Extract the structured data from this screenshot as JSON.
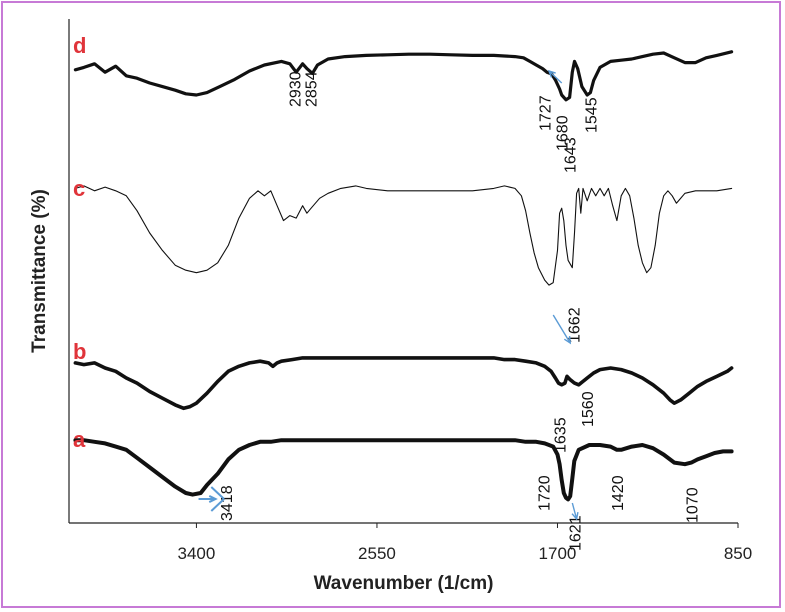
{
  "chart_data": {
    "type": "line",
    "xlabel": "Wavenumber (1/cm)",
    "ylabel": "Transmittance (%)",
    "xlim": [
      4000,
      850
    ],
    "x_ticks": [
      {
        "value": 3400,
        "label": "3400"
      },
      {
        "value": 2550,
        "label": "2550"
      },
      {
        "value": 1700,
        "label": "1700"
      },
      {
        "value": 850,
        "label": "850"
      }
    ],
    "y_ticks_shown": false,
    "grid": false,
    "colors": {
      "curve_label": "#e0343a",
      "arrow": "#5b9bd5",
      "line": "#111111",
      "frame": "#c77ad6"
    },
    "series": [
      {
        "name": "d",
        "points": [
          [
            3970,
            62
          ],
          [
            3930,
            66
          ],
          [
            3880,
            72
          ],
          [
            3830,
            58
          ],
          [
            3780,
            68
          ],
          [
            3730,
            52
          ],
          [
            3680,
            48
          ],
          [
            3620,
            40
          ],
          [
            3560,
            34
          ],
          [
            3500,
            28
          ],
          [
            3450,
            22
          ],
          [
            3400,
            20
          ],
          [
            3350,
            24
          ],
          [
            3290,
            34
          ],
          [
            3220,
            46
          ],
          [
            3150,
            60
          ],
          [
            3080,
            70
          ],
          [
            3000,
            76
          ],
          [
            2960,
            72
          ],
          [
            2930,
            58
          ],
          [
            2900,
            72
          ],
          [
            2880,
            64
          ],
          [
            2854,
            56
          ],
          [
            2830,
            70
          ],
          [
            2780,
            80
          ],
          [
            2700,
            84
          ],
          [
            2600,
            86
          ],
          [
            2500,
            87
          ],
          [
            2400,
            88
          ],
          [
            2300,
            88
          ],
          [
            2200,
            87
          ],
          [
            2100,
            86
          ],
          [
            2000,
            86
          ],
          [
            1950,
            85
          ],
          [
            1900,
            84
          ],
          [
            1860,
            82
          ],
          [
            1830,
            76
          ],
          [
            1800,
            70
          ],
          [
            1770,
            64
          ],
          [
            1750,
            58
          ],
          [
            1727,
            55
          ],
          [
            1710,
            45
          ],
          [
            1690,
            30
          ],
          [
            1680,
            20
          ],
          [
            1660,
            12
          ],
          [
            1643,
            16
          ],
          [
            1630,
            58
          ],
          [
            1620,
            76
          ],
          [
            1605,
            64
          ],
          [
            1585,
            34
          ],
          [
            1560,
            20
          ],
          [
            1545,
            24
          ],
          [
            1530,
            44
          ],
          [
            1500,
            66
          ],
          [
            1450,
            76
          ],
          [
            1400,
            78
          ],
          [
            1350,
            80
          ],
          [
            1300,
            84
          ],
          [
            1250,
            88
          ],
          [
            1200,
            90
          ],
          [
            1150,
            82
          ],
          [
            1100,
            74
          ],
          [
            1050,
            74
          ],
          [
            1000,
            82
          ],
          [
            950,
            86
          ],
          [
            880,
            92
          ]
        ],
        "peak_labels": [
          "2930",
          "2854",
          "1727",
          "1680",
          "1643",
          "1545"
        ]
      },
      {
        "name": "c",
        "points": [
          [
            3970,
            86
          ],
          [
            3930,
            88
          ],
          [
            3880,
            84
          ],
          [
            3830,
            87
          ],
          [
            3780,
            84
          ],
          [
            3730,
            80
          ],
          [
            3680,
            68
          ],
          [
            3620,
            50
          ],
          [
            3560,
            36
          ],
          [
            3500,
            24
          ],
          [
            3450,
            20
          ],
          [
            3400,
            18
          ],
          [
            3350,
            20
          ],
          [
            3300,
            26
          ],
          [
            3250,
            40
          ],
          [
            3200,
            62
          ],
          [
            3150,
            78
          ],
          [
            3110,
            84
          ],
          [
            3080,
            80
          ],
          [
            3050,
            84
          ],
          [
            3020,
            72
          ],
          [
            2990,
            60
          ],
          [
            2960,
            64
          ],
          [
            2930,
            62
          ],
          [
            2900,
            72
          ],
          [
            2880,
            66
          ],
          [
            2860,
            70
          ],
          [
            2820,
            78
          ],
          [
            2780,
            82
          ],
          [
            2720,
            86
          ],
          [
            2650,
            88
          ],
          [
            2600,
            86
          ],
          [
            2500,
            84
          ],
          [
            2400,
            84
          ],
          [
            2300,
            84
          ],
          [
            2200,
            84
          ],
          [
            2100,
            84
          ],
          [
            2000,
            86
          ],
          [
            1950,
            88
          ],
          [
            1900,
            86
          ],
          [
            1870,
            80
          ],
          [
            1850,
            68
          ],
          [
            1830,
            50
          ],
          [
            1810,
            34
          ],
          [
            1790,
            22
          ],
          [
            1760,
            12
          ],
          [
            1740,
            8
          ],
          [
            1720,
            10
          ],
          [
            1700,
            36
          ],
          [
            1690,
            66
          ],
          [
            1680,
            70
          ],
          [
            1670,
            60
          ],
          [
            1660,
            40
          ],
          [
            1650,
            28
          ],
          [
            1630,
            22
          ],
          [
            1620,
            50
          ],
          [
            1610,
            82
          ],
          [
            1600,
            86
          ],
          [
            1590,
            66
          ],
          [
            1580,
            86
          ],
          [
            1560,
            76
          ],
          [
            1540,
            86
          ],
          [
            1520,
            80
          ],
          [
            1500,
            86
          ],
          [
            1480,
            80
          ],
          [
            1460,
            86
          ],
          [
            1440,
            72
          ],
          [
            1420,
            60
          ],
          [
            1400,
            80
          ],
          [
            1380,
            86
          ],
          [
            1360,
            80
          ],
          [
            1340,
            62
          ],
          [
            1320,
            40
          ],
          [
            1300,
            26
          ],
          [
            1280,
            18
          ],
          [
            1260,
            22
          ],
          [
            1240,
            40
          ],
          [
            1220,
            66
          ],
          [
            1200,
            80
          ],
          [
            1180,
            84
          ],
          [
            1160,
            80
          ],
          [
            1140,
            74
          ],
          [
            1120,
            78
          ],
          [
            1100,
            82
          ],
          [
            1050,
            84
          ],
          [
            950,
            84
          ],
          [
            880,
            86
          ]
        ],
        "peak_labels": [
          "1662"
        ]
      },
      {
        "name": "b",
        "points": [
          [
            3970,
            62
          ],
          [
            3930,
            60
          ],
          [
            3880,
            62
          ],
          [
            3830,
            56
          ],
          [
            3780,
            52
          ],
          [
            3730,
            44
          ],
          [
            3680,
            38
          ],
          [
            3620,
            28
          ],
          [
            3560,
            20
          ],
          [
            3500,
            12
          ],
          [
            3460,
            8
          ],
          [
            3430,
            10
          ],
          [
            3400,
            14
          ],
          [
            3350,
            26
          ],
          [
            3300,
            40
          ],
          [
            3250,
            52
          ],
          [
            3200,
            58
          ],
          [
            3150,
            62
          ],
          [
            3100,
            64
          ],
          [
            3060,
            62
          ],
          [
            3040,
            58
          ],
          [
            3020,
            62
          ],
          [
            3000,
            64
          ],
          [
            2950,
            66
          ],
          [
            2900,
            68
          ],
          [
            2800,
            68
          ],
          [
            2700,
            68
          ],
          [
            2600,
            68
          ],
          [
            2500,
            68
          ],
          [
            2400,
            68
          ],
          [
            2300,
            68
          ],
          [
            2200,
            68
          ],
          [
            2100,
            68
          ],
          [
            2000,
            68
          ],
          [
            1950,
            66
          ],
          [
            1900,
            66
          ],
          [
            1850,
            64
          ],
          [
            1800,
            62
          ],
          [
            1760,
            58
          ],
          [
            1730,
            52
          ],
          [
            1710,
            44
          ],
          [
            1695,
            38
          ],
          [
            1680,
            36
          ],
          [
            1665,
            38
          ],
          [
            1655,
            46
          ],
          [
            1640,
            42
          ],
          [
            1620,
            38
          ],
          [
            1600,
            36
          ],
          [
            1580,
            40
          ],
          [
            1560,
            44
          ],
          [
            1530,
            50
          ],
          [
            1500,
            54
          ],
          [
            1450,
            56
          ],
          [
            1400,
            54
          ],
          [
            1350,
            50
          ],
          [
            1300,
            44
          ],
          [
            1250,
            36
          ],
          [
            1200,
            26
          ],
          [
            1170,
            18
          ],
          [
            1150,
            14
          ],
          [
            1120,
            18
          ],
          [
            1080,
            26
          ],
          [
            1040,
            34
          ],
          [
            1000,
            40
          ],
          [
            950,
            46
          ],
          [
            900,
            52
          ],
          [
            880,
            56
          ]
        ],
        "peak_labels": [
          "1635",
          "1560"
        ]
      },
      {
        "name": "a",
        "points": [
          [
            3970,
            86
          ],
          [
            3930,
            86
          ],
          [
            3880,
            84
          ],
          [
            3830,
            82
          ],
          [
            3780,
            78
          ],
          [
            3730,
            74
          ],
          [
            3680,
            64
          ],
          [
            3620,
            52
          ],
          [
            3560,
            40
          ],
          [
            3500,
            28
          ],
          [
            3450,
            20
          ],
          [
            3418,
            18
          ],
          [
            3380,
            20
          ],
          [
            3350,
            30
          ],
          [
            3300,
            44
          ],
          [
            3250,
            62
          ],
          [
            3200,
            74
          ],
          [
            3150,
            80
          ],
          [
            3100,
            84
          ],
          [
            3050,
            84
          ],
          [
            3000,
            86
          ],
          [
            2950,
            86
          ],
          [
            2900,
            86
          ],
          [
            2800,
            86
          ],
          [
            2700,
            86
          ],
          [
            2600,
            86
          ],
          [
            2500,
            86
          ],
          [
            2400,
            86
          ],
          [
            2300,
            86
          ],
          [
            2200,
            86
          ],
          [
            2100,
            86
          ],
          [
            2000,
            86
          ],
          [
            1900,
            86
          ],
          [
            1850,
            84
          ],
          [
            1800,
            84
          ],
          [
            1760,
            82
          ],
          [
            1740,
            80
          ],
          [
            1720,
            78
          ],
          [
            1700,
            68
          ],
          [
            1690,
            56
          ],
          [
            1680,
            36
          ],
          [
            1670,
            20
          ],
          [
            1660,
            14
          ],
          [
            1650,
            12
          ],
          [
            1640,
            16
          ],
          [
            1630,
            38
          ],
          [
            1621,
            60
          ],
          [
            1600,
            74
          ],
          [
            1550,
            80
          ],
          [
            1500,
            80
          ],
          [
            1450,
            78
          ],
          [
            1420,
            74
          ],
          [
            1400,
            74
          ],
          [
            1350,
            78
          ],
          [
            1300,
            80
          ],
          [
            1250,
            76
          ],
          [
            1200,
            68
          ],
          [
            1150,
            58
          ],
          [
            1100,
            56
          ],
          [
            1070,
            58
          ],
          [
            1040,
            62
          ],
          [
            1000,
            66
          ],
          [
            960,
            70
          ],
          [
            920,
            72
          ],
          [
            880,
            72
          ]
        ],
        "peak_labels": [
          "3418",
          "1720",
          "1621",
          "1420",
          "1070"
        ]
      }
    ]
  }
}
